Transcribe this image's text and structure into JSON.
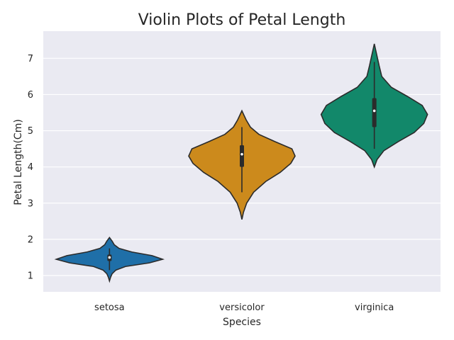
{
  "chart_data": {
    "type": "violin",
    "title": "Violin Plots of Petal Length",
    "xlabel": "Species",
    "ylabel": "Petal Length(Cm)",
    "ylim": [
      0.55,
      7.75
    ],
    "yticks": [
      1,
      2,
      3,
      4,
      5,
      6,
      7
    ],
    "grid": true,
    "categories": [
      "setosa",
      "versicolor",
      "virginica"
    ],
    "colors": [
      "#1f6fa8",
      "#cc8a1c",
      "#12886a"
    ],
    "violins": [
      {
        "category": "setosa",
        "min": 0.85,
        "max": 2.05,
        "q1": 1.4,
        "median": 1.5,
        "q3": 1.58,
        "whisker_low": 1.15,
        "whisker_high": 1.75,
        "profile": [
          [
            0.85,
            0.0
          ],
          [
            0.95,
            0.02
          ],
          [
            1.05,
            0.05
          ],
          [
            1.15,
            0.12
          ],
          [
            1.25,
            0.3
          ],
          [
            1.35,
            0.75
          ],
          [
            1.45,
            1.0
          ],
          [
            1.55,
            0.8
          ],
          [
            1.65,
            0.42
          ],
          [
            1.75,
            0.18
          ],
          [
            1.85,
            0.09
          ],
          [
            1.95,
            0.05
          ],
          [
            2.05,
            0.0
          ]
        ]
      },
      {
        "category": "versicolor",
        "min": 2.55,
        "max": 5.55,
        "q1": 4.0,
        "median": 4.35,
        "q3": 4.6,
        "whisker_low": 3.3,
        "whisker_high": 5.1,
        "profile": [
          [
            2.55,
            0.0
          ],
          [
            2.75,
            0.03
          ],
          [
            3.0,
            0.09
          ],
          [
            3.3,
            0.22
          ],
          [
            3.6,
            0.45
          ],
          [
            3.85,
            0.72
          ],
          [
            4.1,
            0.92
          ],
          [
            4.3,
            1.0
          ],
          [
            4.5,
            0.94
          ],
          [
            4.7,
            0.62
          ],
          [
            4.9,
            0.32
          ],
          [
            5.1,
            0.16
          ],
          [
            5.3,
            0.08
          ],
          [
            5.55,
            0.0
          ]
        ]
      },
      {
        "category": "virginica",
        "min": 4.0,
        "max": 7.4,
        "q1": 5.1,
        "median": 5.55,
        "q3": 5.9,
        "whisker_low": 4.5,
        "whisker_high": 6.9,
        "profile": [
          [
            4.0,
            0.0
          ],
          [
            4.2,
            0.05
          ],
          [
            4.45,
            0.18
          ],
          [
            4.7,
            0.45
          ],
          [
            4.95,
            0.75
          ],
          [
            5.2,
            0.93
          ],
          [
            5.45,
            1.0
          ],
          [
            5.7,
            0.9
          ],
          [
            5.95,
            0.62
          ],
          [
            6.2,
            0.32
          ],
          [
            6.5,
            0.14
          ],
          [
            6.8,
            0.09
          ],
          [
            7.0,
            0.06
          ],
          [
            7.2,
            0.03
          ],
          [
            7.4,
            0.0
          ]
        ]
      }
    ]
  }
}
